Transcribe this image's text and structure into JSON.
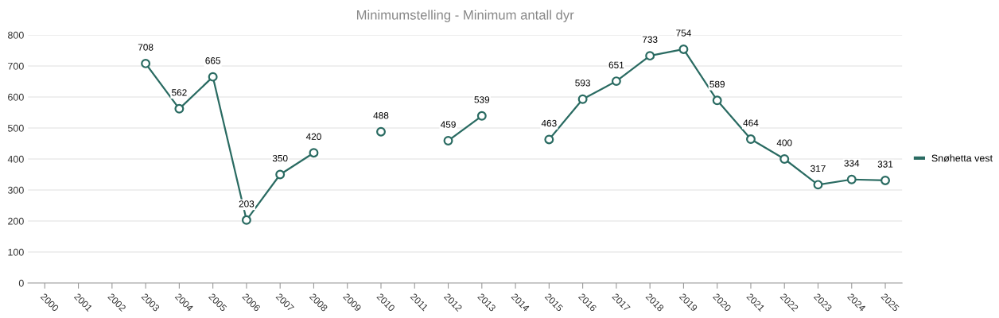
{
  "chart_data": {
    "type": "line",
    "title": "Minimumstelling - Minimum antall dyr",
    "categories": [
      "2000",
      "2001",
      "2002",
      "2003",
      "2004",
      "2005",
      "2006",
      "2007",
      "2008",
      "2009",
      "2010",
      "2011",
      "2012",
      "2013",
      "2014",
      "2015",
      "2016",
      "2017",
      "2018",
      "2019",
      "2020",
      "2021",
      "2022",
      "2023",
      "2024",
      "2025"
    ],
    "series": [
      {
        "name": "Snøhetta vest",
        "color": "#2a6b62",
        "values": [
          null,
          null,
          null,
          708,
          562,
          665,
          203,
          350,
          420,
          null,
          488,
          null,
          459,
          539,
          null,
          463,
          593,
          651,
          733,
          754,
          589,
          464,
          400,
          317,
          334,
          331
        ]
      }
    ],
    "ylim": [
      0,
      800
    ],
    "yticks": [
      0,
      100,
      200,
      300,
      400,
      500,
      600,
      700,
      800
    ],
    "grid": "y",
    "legend": "right",
    "marker": "circle",
    "line_style": "solid",
    "data_labels": true
  }
}
